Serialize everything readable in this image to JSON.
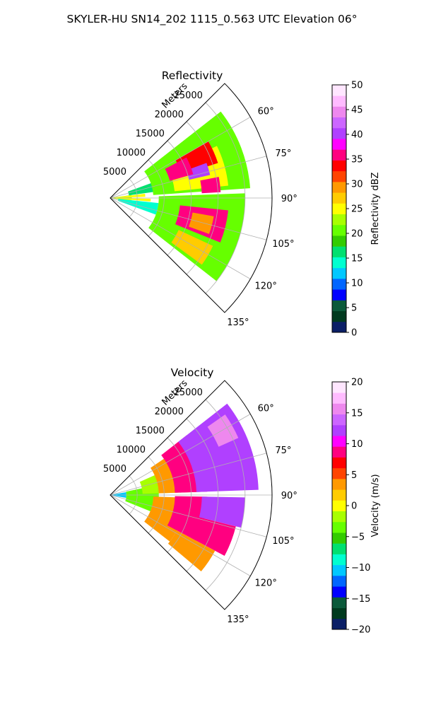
{
  "figure": {
    "title": "SKYLER-HU  SN14_202  1115_0.563 UTC Elevation 06°"
  },
  "chart_data": [
    {
      "type": "heatmap",
      "projection": "polar-sector",
      "title": "Reflectivity",
      "range_label": "Meters",
      "range_ticks": [
        "5000",
        "10000",
        "15000",
        "20000",
        "25000"
      ],
      "range_values": [
        5000,
        10000,
        15000,
        20000,
        25000
      ],
      "range_max": 30000,
      "azimuth_ticks": [
        "60°",
        "75°",
        "90°",
        "105°",
        "120°",
        "135°"
      ],
      "azimuth_values": [
        60,
        75,
        90,
        105,
        120,
        135
      ],
      "azimuth_range": [
        45,
        135
      ],
      "grid": true,
      "colorbar": {
        "label": "Reflectivity dBZ",
        "min": 0,
        "max": 50,
        "ticks": [
          "0",
          "5",
          "10",
          "15",
          "20",
          "25",
          "30",
          "35",
          "40",
          "45",
          "50"
        ],
        "tick_values": [
          0,
          5,
          10,
          15,
          20,
          25,
          30,
          35,
          40,
          45,
          50
        ],
        "colors": [
          "#0b1f66",
          "#003a1e",
          "#0b5a3a",
          "#0000ff",
          "#0066ff",
          "#00c8ff",
          "#00ffd0",
          "#00e070",
          "#33cc00",
          "#66ff00",
          "#a8ff00",
          "#ffff00",
          "#ffcc00",
          "#ff9900",
          "#ff4400",
          "#ff0000",
          "#ff0080",
          "#ff00ff",
          "#b040ff",
          "#cc66ff",
          "#ee88ee",
          "#ffbbff",
          "#ffe6ff"
        ]
      },
      "field_regions": [
        {
          "r": [
            0,
            4000
          ],
          "az": [
            82,
            98
          ],
          "value": 22
        },
        {
          "r": [
            0,
            6500
          ],
          "az": [
            83,
            88
          ],
          "value": 24
        },
        {
          "r": [
            0,
            7500
          ],
          "az": [
            91,
            95
          ],
          "value": 26
        },
        {
          "r": [
            1500,
            9000
          ],
          "az": [
            96,
            110
          ],
          "value": 15
        },
        {
          "r": [
            3500,
            11000
          ],
          "az": [
            70,
            82
          ],
          "value": 16
        },
        {
          "r": [
            8000,
            26000
          ],
          "az": [
            52,
            86
          ],
          "value": 21
        },
        {
          "r": [
            9000,
            25000
          ],
          "az": [
            88,
            128
          ],
          "value": 21
        },
        {
          "r": [
            12000,
            22000
          ],
          "az": [
            64,
            84
          ],
          "value": 26
        },
        {
          "r": [
            14000,
            21000
          ],
          "az": [
            60,
            72
          ],
          "value": 34
        },
        {
          "r": [
            15000,
            19000
          ],
          "az": [
            70,
            77
          ],
          "value": 41
        },
        {
          "r": [
            11500,
            16000
          ],
          "az": [
            62,
            74
          ],
          "value": 35
        },
        {
          "r": [
            17000,
            20500
          ],
          "az": [
            79,
            87
          ],
          "value": 35
        },
        {
          "r": [
            13000,
            22000
          ],
          "az": [
            96,
            112
          ],
          "value": 35
        },
        {
          "r": [
            15500,
            19500
          ],
          "az": [
            100,
            110
          ],
          "value": 29
        },
        {
          "r": [
            14000,
            21000
          ],
          "az": [
            115,
            126
          ],
          "value": 27
        }
      ]
    },
    {
      "type": "heatmap",
      "projection": "polar-sector",
      "title": "Velocity",
      "range_label": "Meters",
      "range_ticks": [
        "5000",
        "10000",
        "15000",
        "20000",
        "25000"
      ],
      "range_values": [
        5000,
        10000,
        15000,
        20000,
        25000
      ],
      "range_max": 30000,
      "azimuth_ticks": [
        "60°",
        "75°",
        "90°",
        "105°",
        "120°",
        "135°"
      ],
      "azimuth_values": [
        60,
        75,
        90,
        105,
        120,
        135
      ],
      "azimuth_range": [
        45,
        135
      ],
      "grid": true,
      "colorbar": {
        "label": "Velocity (m/s)",
        "min": -20,
        "max": 20,
        "ticks": [
          "−20",
          "−15",
          "−10",
          "−5",
          "0",
          "5",
          "10",
          "15",
          "20"
        ],
        "tick_values": [
          -20,
          -15,
          -10,
          -5,
          0,
          5,
          10,
          15,
          20
        ],
        "colors": [
          "#0b1f66",
          "#003a1e",
          "#0b5a3a",
          "#0000ff",
          "#0066ff",
          "#00c8ff",
          "#00ffd0",
          "#00e070",
          "#33cc00",
          "#66ff00",
          "#a8ff00",
          "#ffff00",
          "#ffcc00",
          "#ff9900",
          "#ff4400",
          "#ff0000",
          "#ff0080",
          "#ff00ff",
          "#b040ff",
          "#cc66ff",
          "#ee88ee",
          "#ffbbff",
          "#ffe6ff"
        ]
      },
      "field_regions": [
        {
          "r": [
            0,
            3000
          ],
          "az": [
            80,
            100
          ],
          "value": -10
        },
        {
          "r": [
            3000,
            9000
          ],
          "az": [
            78,
            112
          ],
          "value": -4
        },
        {
          "r": [
            6000,
            13000
          ],
          "az": [
            66,
            88
          ],
          "value": -1
        },
        {
          "r": [
            9000,
            16000
          ],
          "az": [
            56,
            88
          ],
          "value": 3
        },
        {
          "r": [
            12000,
            18000
          ],
          "az": [
            52,
            88
          ],
          "value": 8
        },
        {
          "r": [
            16000,
            27500
          ],
          "az": [
            52,
            88
          ],
          "value": 13
        },
        {
          "r": [
            22000,
            26000
          ],
          "az": [
            55,
            66
          ],
          "value": 15
        },
        {
          "r": [
            8000,
            14000
          ],
          "az": [
            92,
            128
          ],
          "value": 3
        },
        {
          "r": [
            12000,
            18000
          ],
          "az": [
            91,
            118
          ],
          "value": 9
        },
        {
          "r": [
            17000,
            25000
          ],
          "az": [
            91,
            104
          ],
          "value": 12
        },
        {
          "r": [
            17000,
            24000
          ],
          "az": [
            104,
            118
          ],
          "value": 9
        },
        {
          "r": [
            14000,
            22000
          ],
          "az": [
            118,
            130
          ],
          "value": 4
        }
      ]
    }
  ]
}
